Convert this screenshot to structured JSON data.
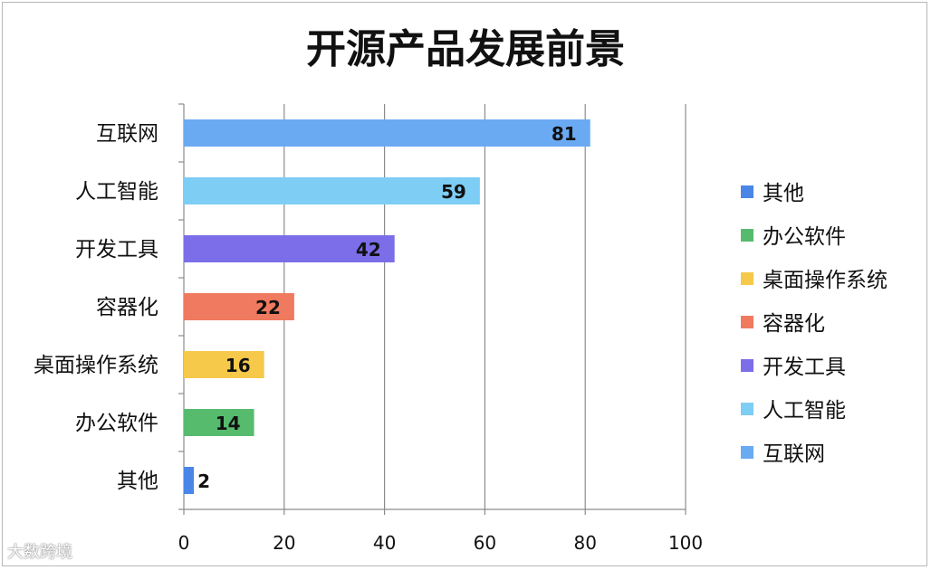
{
  "chart_data": {
    "type": "bar",
    "orientation": "horizontal",
    "title": "开源产品发展前景",
    "categories": [
      "其他",
      "办公软件",
      "桌面操作系统",
      "容器化",
      "开发工具",
      "人工智能",
      "互联网"
    ],
    "values": [
      2,
      14,
      16,
      22,
      42,
      59,
      81
    ],
    "colors": [
      "#4a86e8",
      "#57bb6e",
      "#f6c94a",
      "#f07a5f",
      "#7b6ee8",
      "#7dcdf5",
      "#6aaaf2"
    ],
    "xlim": [
      0,
      100
    ],
    "xticks": [
      0,
      20,
      40,
      60,
      80,
      100
    ],
    "grid": true,
    "legend_position": "right",
    "legend": [
      "其他",
      "办公软件",
      "桌面操作系统",
      "容器化",
      "开发工具",
      "人工智能",
      "互联网"
    ]
  },
  "watermark": "大数跨境"
}
